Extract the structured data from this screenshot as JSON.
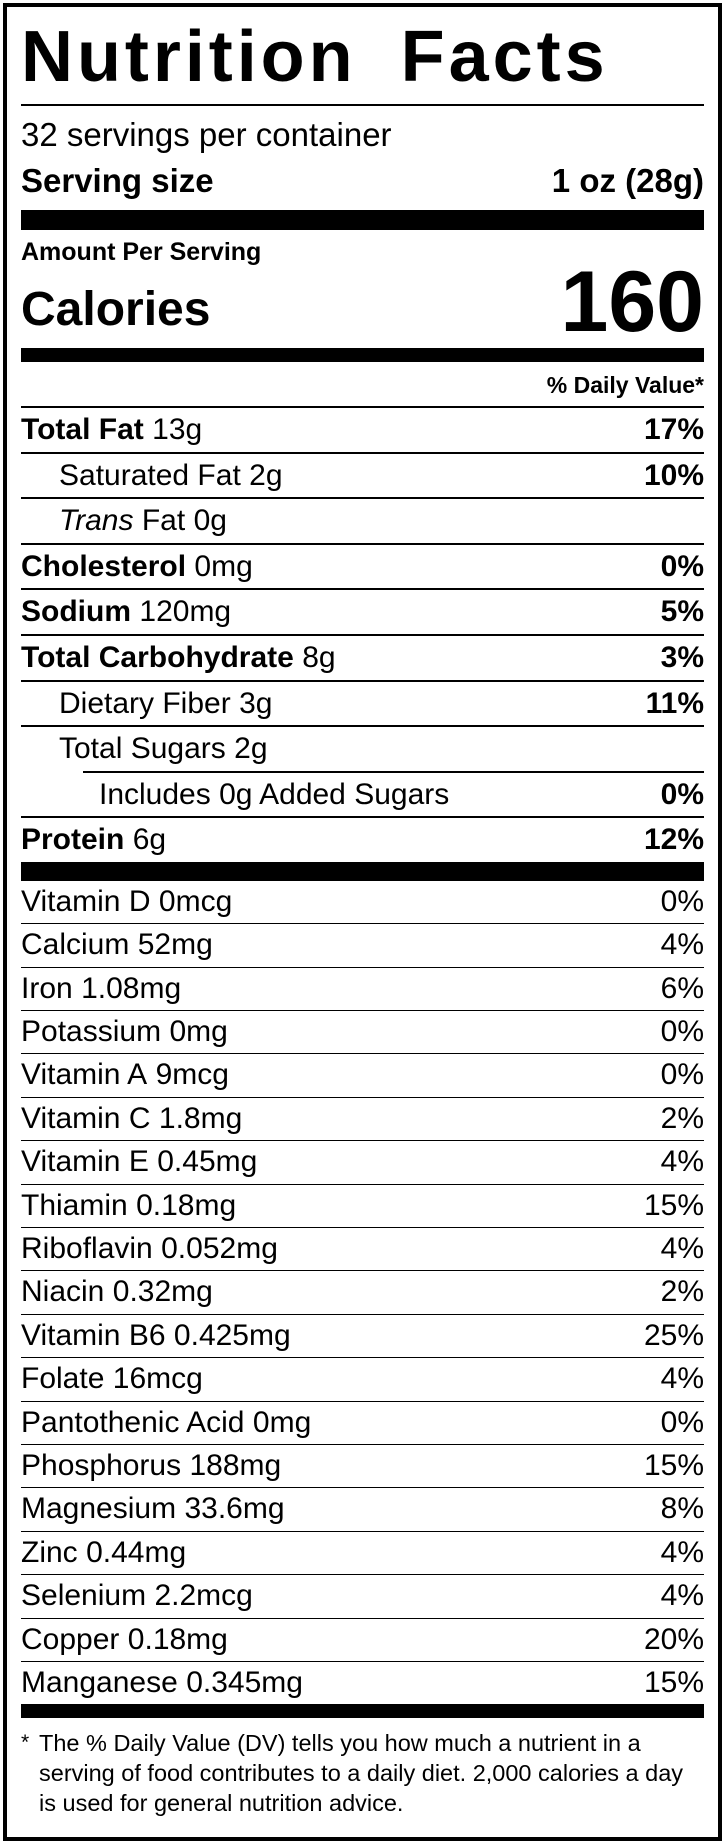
{
  "header": {
    "title": "Nutrition Facts",
    "servings_per_container": "32 servings per container",
    "serving_size_label": "Serving size",
    "serving_size_value": "1 oz (28g)"
  },
  "calories": {
    "amount_per_serving_label": "Amount Per Serving",
    "label": "Calories",
    "value": "160"
  },
  "daily_value_header": "% Daily Value*",
  "nutrients": [
    {
      "name": "Total Fat",
      "amount": "13g",
      "dv": "17%"
    },
    {
      "name": "Saturated Fat",
      "amount": "2g",
      "dv": "10%"
    },
    {
      "name_italic": "Trans",
      "name": "Fat",
      "amount": "0g",
      "dv": ""
    },
    {
      "name": "Cholesterol",
      "amount": "0mg",
      "dv": "0%"
    },
    {
      "name": "Sodium",
      "amount": "120mg",
      "dv": "5%"
    },
    {
      "name": "Total Carbohydrate",
      "amount": "8g",
      "dv": "3%"
    },
    {
      "name": "Dietary Fiber",
      "amount": "3g",
      "dv": "11%"
    },
    {
      "name": "Total Sugars",
      "amount": "2g",
      "dv": ""
    },
    {
      "name": "Includes 0g Added Sugars",
      "amount": "",
      "dv": "0%"
    },
    {
      "name": "Protein",
      "amount": "6g",
      "dv": "12%"
    }
  ],
  "micronutrients": [
    {
      "name": "Vitamin D",
      "amount": "0mcg",
      "dv": "0%"
    },
    {
      "name": "Calcium",
      "amount": "52mg",
      "dv": "4%"
    },
    {
      "name": "Iron",
      "amount": "1.08mg",
      "dv": "6%"
    },
    {
      "name": "Potassium",
      "amount": "0mg",
      "dv": "0%"
    },
    {
      "name": "Vitamin A",
      "amount": "9mcg",
      "dv": "0%"
    },
    {
      "name": "Vitamin C",
      "amount": "1.8mg",
      "dv": "2%"
    },
    {
      "name": "Vitamin E",
      "amount": "0.45mg",
      "dv": "4%"
    },
    {
      "name": "Thiamin",
      "amount": "0.18mg",
      "dv": "15%"
    },
    {
      "name": "Riboflavin",
      "amount": "0.052mg",
      "dv": "4%"
    },
    {
      "name": "Niacin",
      "amount": "0.32mg",
      "dv": "2%"
    },
    {
      "name": "Vitamin B6",
      "amount": "0.425mg",
      "dv": "25%"
    },
    {
      "name": "Folate",
      "amount": "16mcg",
      "dv": "4%"
    },
    {
      "name": "Pantothenic Acid",
      "amount": "0mg",
      "dv": "0%"
    },
    {
      "name": "Phosphorus",
      "amount": "188mg",
      "dv": "15%"
    },
    {
      "name": "Magnesium",
      "amount": "33.6mg",
      "dv": "8%"
    },
    {
      "name": "Zinc",
      "amount": "0.44mg",
      "dv": "4%"
    },
    {
      "name": "Selenium",
      "amount": "2.2mcg",
      "dv": "4%"
    },
    {
      "name": "Copper",
      "amount": "0.18mg",
      "dv": "20%"
    },
    {
      "name": "Manganese",
      "amount": "0.345mg",
      "dv": "15%"
    }
  ],
  "footnote": {
    "asterisk": "*",
    "text": "The % Daily Value (DV) tells you how much a nutrient in a serving of food contributes to a daily diet. 2,000 calories a day is used for general nutrition advice."
  },
  "colors": {
    "foreground": "#000000",
    "background": "#ffffff"
  }
}
